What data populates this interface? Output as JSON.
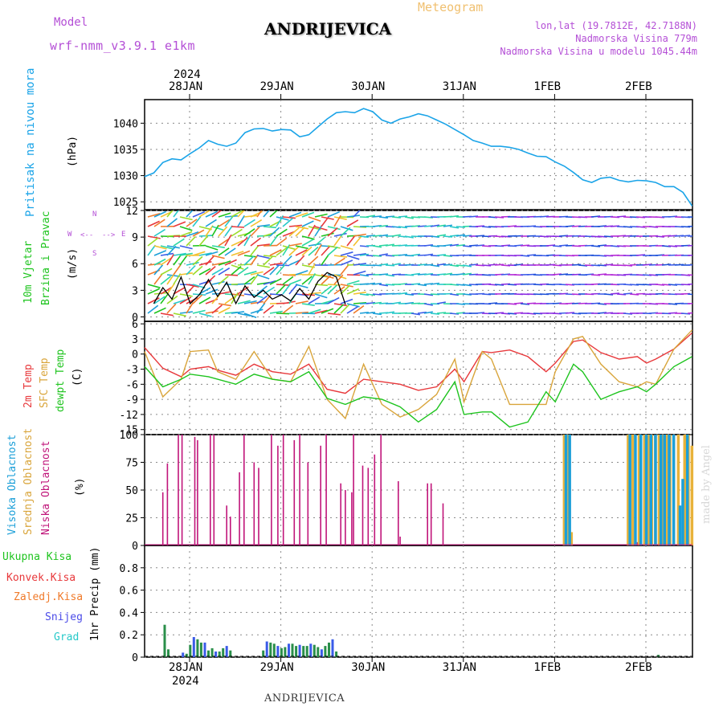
{
  "header": {
    "model_label": "Model",
    "model_name": "wrf-nmm_v3.9.1  e1km",
    "station": "ANDRIJEVICA",
    "product": "Meteogram",
    "coords": "lon,lat (19.7812E, 42.7188N)",
    "elevation": "Nadmorska Visina 779m",
    "model_elevation": "Nadmorska Visina u modelu 1045.44m",
    "footer_station": "ANDRIJEVICA",
    "credit": "made by Angel"
  },
  "colors": {
    "pressure": "#1ba4e8",
    "temp2m": "#e8383b",
    "sfc": "#d9a53b",
    "dewpt": "#1ec41e",
    "low_cloud": "#c0157a",
    "mid_cloud": "#e8b23a",
    "high_cloud": "#1b9fd8",
    "header_purple": "#b44fd6",
    "header_orange": "#f0c070",
    "grid": "#999999"
  },
  "time_axis": {
    "top_year": "2024",
    "bottom_year": "2024",
    "dates": [
      "28JAN",
      "29JAN",
      "30JAN",
      "31JAN",
      "1FEB",
      "2FEB"
    ]
  },
  "chart_data": [
    {
      "type": "line",
      "panel": "pressure",
      "ylabel_lines": [
        "Pritisak na nivou mora",
        "(hPa)"
      ],
      "yticks": [
        1025,
        1030,
        1035,
        1040
      ],
      "ylim": [
        1023.5,
        1044.5
      ],
      "xlim_days": [
        0,
        6
      ],
      "series": [
        {
          "x": [
            0,
            0.1,
            0.2,
            0.3,
            0.4,
            0.5,
            0.6,
            0.7,
            0.8,
            0.9,
            1.0,
            1.1,
            1.2,
            1.3,
            1.4,
            1.5,
            1.6,
            1.7,
            1.8,
            1.9,
            2.0,
            2.1,
            2.2,
            2.3,
            2.4,
            2.5,
            2.6,
            2.7,
            2.8,
            2.9,
            3.0,
            3.1,
            3.2,
            3.3,
            3.4,
            3.5,
            3.6,
            3.7,
            3.8,
            3.9,
            4.0,
            4.1,
            4.2,
            4.3,
            4.4,
            4.5,
            4.6,
            4.7,
            4.8,
            4.9,
            5.0,
            5.1,
            5.2,
            5.3,
            5.4,
            5.5,
            5.6,
            5.7,
            5.8,
            5.9,
            6.0
          ],
          "values": [
            1029.8,
            1030.5,
            1032.5,
            1033.2,
            1033.0,
            1034.2,
            1035.3,
            1036.7,
            1036.0,
            1035.6,
            1036.2,
            1038.2,
            1038.9,
            1039.0,
            1038.5,
            1038.8,
            1038.7,
            1037.4,
            1037.8,
            1039.3,
            1040.8,
            1042.0,
            1042.2,
            1042.0,
            1042.8,
            1042.2,
            1040.6,
            1040.0,
            1040.8,
            1041.2,
            1041.8,
            1041.4,
            1040.6,
            1039.8,
            1038.8,
            1037.8,
            1036.7,
            1036.2,
            1035.6,
            1035.6,
            1035.4,
            1035.0,
            1034.3,
            1033.7,
            1033.6,
            1032.6,
            1031.8,
            1030.6,
            1029.2,
            1028.7,
            1029.5,
            1029.7,
            1029.1,
            1028.8,
            1029.1,
            1029.0,
            1028.7,
            1027.9,
            1027.9,
            1026.8,
            1024.2
          ]
        }
      ]
    },
    {
      "type": "line",
      "panel": "wind",
      "ylabel_lines": [
        "10m Vjetar",
        "Brzina i Pravac",
        "(m/s)"
      ],
      "direction_key": [
        "N",
        "W",
        "E",
        "S",
        "<--",
        "-->"
      ],
      "yticks": [
        0,
        3,
        6,
        9,
        12
      ],
      "ylim": [
        -0.5,
        12
      ],
      "xlim_days": [
        0,
        6
      ],
      "series": [
        {
          "name": "speed",
          "x": [
            0.1,
            0.2,
            0.3,
            0.4,
            0.5,
            0.6,
            0.7,
            0.8,
            0.9,
            1.0,
            1.1,
            1.2,
            1.3,
            1.4,
            1.5,
            1.6,
            1.7,
            1.8,
            1.9,
            2.0,
            2.1,
            2.2
          ],
          "values": [
            1.5,
            3.3,
            2.0,
            4.5,
            1.5,
            2.5,
            4.2,
            2.3,
            3.9,
            1.5,
            3.5,
            2.2,
            3.0,
            2.0,
            2.5,
            1.8,
            3.2,
            2.0,
            4.0,
            5.0,
            4.5,
            1.4
          ]
        }
      ]
    },
    {
      "type": "line",
      "panel": "temperature",
      "ylabel_lines": [
        "2m Temp",
        "SFC Temp",
        "dewpt Temp",
        "(C)"
      ],
      "yticks": [
        -15,
        -12,
        -9,
        -6,
        -3,
        0,
        3,
        6
      ],
      "ylim": [
        -16,
        6.5
      ],
      "xlim_days": [
        0,
        6
      ],
      "series": [
        {
          "name": "2m Temp",
          "x": [
            0,
            0.2,
            0.4,
            0.5,
            0.7,
            0.8,
            1.0,
            1.2,
            1.4,
            1.6,
            1.8,
            2.0,
            2.2,
            2.4,
            2.6,
            2.8,
            3.0,
            3.2,
            3.4,
            3.5,
            3.7,
            3.8,
            4.0,
            4.2,
            4.4,
            4.5,
            4.7,
            4.8,
            5.0,
            5.2,
            5.4,
            5.5,
            5.6,
            5.8,
            6.0
          ],
          "values": [
            1.3,
            -2.8,
            -4.5,
            -3.0,
            -2.5,
            -3.2,
            -4.2,
            -2.0,
            -3.5,
            -4.0,
            -2.0,
            -7.0,
            -7.8,
            -5.0,
            -5.5,
            -6.0,
            -7.2,
            -6.5,
            -3.0,
            -5.5,
            0.5,
            0.3,
            0.8,
            -0.5,
            -3.5,
            -1.8,
            2.5,
            2.8,
            0.3,
            -1.0,
            -0.5,
            -1.8,
            -1.0,
            1.0,
            4.2
          ]
        },
        {
          "name": "SFC Temp",
          "x": [
            0,
            0.2,
            0.4,
            0.5,
            0.7,
            0.8,
            1.0,
            1.2,
            1.4,
            1.6,
            1.8,
            2.0,
            2.2,
            2.4,
            2.6,
            2.8,
            3.0,
            3.2,
            3.4,
            3.5,
            3.7,
            3.8,
            4.0,
            4.2,
            4.4,
            4.5,
            4.7,
            4.8,
            5.0,
            5.2,
            5.4,
            5.5,
            5.6,
            5.8,
            6.0
          ],
          "values": [
            0.5,
            -8.5,
            -5.0,
            0.5,
            0.8,
            -3.5,
            -5.0,
            0.5,
            -5.0,
            -5.5,
            1.5,
            -9.0,
            -12.8,
            -2.0,
            -10.0,
            -12.5,
            -11.0,
            -8.0,
            -1.0,
            -9.5,
            0.5,
            -1.0,
            -10.0,
            -10.0,
            -10.0,
            -3.5,
            3.0,
            3.5,
            -2.0,
            -5.5,
            -6.5,
            -5.5,
            -6.0,
            1.0,
            4.8
          ]
        },
        {
          "name": "dewpt Temp",
          "x": [
            0,
            0.2,
            0.4,
            0.5,
            0.7,
            0.8,
            1.0,
            1.2,
            1.4,
            1.6,
            1.8,
            2.0,
            2.2,
            2.4,
            2.6,
            2.8,
            3.0,
            3.2,
            3.4,
            3.5,
            3.7,
            3.8,
            4.0,
            4.2,
            4.4,
            4.5,
            4.7,
            4.8,
            5.0,
            5.2,
            5.4,
            5.5,
            5.6,
            5.8,
            6.0
          ],
          "values": [
            -2.5,
            -6.5,
            -5.0,
            -4.0,
            -4.5,
            -5.0,
            -6.0,
            -4.0,
            -5.0,
            -5.5,
            -3.5,
            -8.8,
            -10.0,
            -8.5,
            -9.0,
            -10.5,
            -13.5,
            -11.0,
            -5.5,
            -12.0,
            -11.5,
            -11.5,
            -14.5,
            -13.5,
            -7.5,
            -9.5,
            -2.0,
            -3.5,
            -9.0,
            -7.5,
            -6.5,
            -7.5,
            -6.0,
            -2.5,
            -0.5
          ]
        }
      ]
    },
    {
      "type": "bar",
      "panel": "cloud",
      "ylabel_lines": [
        "Visoka Oblacnost",
        "Srednja Oblacnost",
        "Niska Oblacnost",
        "(%)"
      ],
      "yticks": [
        0,
        25,
        50,
        75,
        100
      ],
      "ylim": [
        0,
        100
      ],
      "xlim_days": [
        0,
        6
      ],
      "series": [
        {
          "name": "Niska Oblacnost",
          "x": [
            0.2,
            0.25,
            0.37,
            0.41,
            0.55,
            0.58,
            0.72,
            0.76,
            0.9,
            0.94,
            1.04,
            1.09,
            1.2,
            1.25,
            1.39,
            1.46,
            1.52,
            1.64,
            1.7,
            1.79,
            1.93,
            1.99,
            2.15,
            2.2,
            2.27,
            2.29,
            2.39,
            2.45,
            2.52,
            2.59,
            2.78,
            2.8,
            3.1,
            3.14,
            3.27,
            5.4
          ],
          "values": [
            48,
            74,
            100,
            100,
            98,
            95,
            100,
            100,
            36,
            26,
            66,
            100,
            75,
            70,
            100,
            90,
            100,
            95,
            100,
            75,
            90,
            100,
            56,
            50,
            48,
            100,
            72,
            70,
            82,
            100,
            58,
            8,
            56,
            56,
            38,
            3
          ]
        },
        {
          "name": "Srednja Oblacnost",
          "x": [
            4.6,
            4.65,
            4.68,
            5.3,
            5.35,
            5.42,
            5.48,
            5.52,
            5.56,
            5.6,
            5.64,
            5.68,
            5.72,
            5.76,
            5.8,
            5.85,
            5.92,
            5.96,
            6.0
          ],
          "values": [
            100,
            100,
            12,
            100,
            100,
            100,
            100,
            100,
            100,
            100,
            100,
            100,
            100,
            100,
            100,
            100,
            100,
            100,
            90
          ]
        },
        {
          "name": "Visoka Oblacnost",
          "x": [
            4.62,
            4.66,
            5.32,
            5.38,
            5.44,
            5.5,
            5.55,
            5.6,
            5.66,
            5.7,
            5.75,
            5.8,
            5.87,
            5.9,
            5.95
          ],
          "values": [
            100,
            100,
            100,
            100,
            100,
            100,
            100,
            100,
            100,
            100,
            100,
            100,
            36,
            60,
            100
          ]
        }
      ]
    },
    {
      "type": "bar",
      "panel": "precipitation",
      "ylabel_lines": [
        "1hr Precip (mm)"
      ],
      "legend": [
        "Ukupna Kisa",
        "Konvek.Kisa",
        "Zaledj.Kisa",
        "Snijeg",
        "Grad"
      ],
      "yticks": [
        0,
        0.2,
        0.4,
        0.6,
        0.8
      ],
      "ylim": [
        0,
        1.0
      ],
      "xlim_days": [
        0,
        6
      ],
      "series": [
        {
          "name": "Ukupna Kisa",
          "x": [
            0.22,
            0.26,
            0.42,
            0.46,
            0.5,
            0.54,
            0.58,
            0.62,
            0.66,
            0.7,
            0.74,
            0.78,
            0.82,
            0.86,
            0.9,
            0.94,
            1.3,
            1.34,
            1.38,
            1.42,
            1.46,
            1.5,
            1.54,
            1.58,
            1.62,
            1.66,
            1.7,
            1.74,
            1.78,
            1.82,
            1.86,
            1.9,
            1.94,
            1.98,
            2.02,
            2.06,
            2.1,
            5.63
          ],
          "values": [
            0.29,
            0.07,
            0.04,
            0.03,
            0.11,
            0.18,
            0.16,
            0.13,
            0.13,
            0.06,
            0.08,
            0.05,
            0.05,
            0.08,
            0.1,
            0.06,
            0.06,
            0.14,
            0.13,
            0.12,
            0.1,
            0.08,
            0.09,
            0.12,
            0.12,
            0.1,
            0.11,
            0.1,
            0.1,
            0.12,
            0.11,
            0.09,
            0.07,
            0.1,
            0.13,
            0.16,
            0.05,
            0.02
          ]
        }
      ]
    }
  ]
}
